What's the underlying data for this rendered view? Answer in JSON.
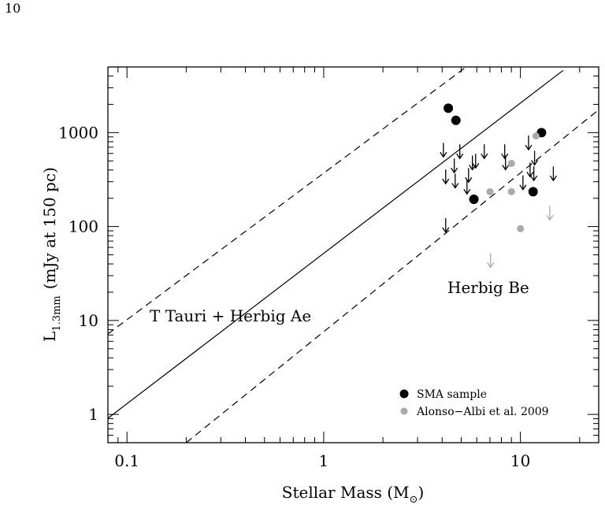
{
  "page_number": "10",
  "chart_data": {
    "type": "scatter",
    "x_label": [
      "Stellar Mass (M",
      "⊙",
      ")"
    ],
    "y_label": [
      "L",
      "1.3mm",
      "(mJy at 150 pc)"
    ],
    "log_x": true,
    "log_y": true,
    "xlim": [
      0.08,
      25
    ],
    "ylim": [
      0.5,
      5000
    ],
    "xticks": [
      0.1,
      1,
      10
    ],
    "yticks": [
      1,
      10,
      100,
      1000
    ],
    "xticks_minor": [
      0.08,
      0.09,
      0.2,
      0.3,
      0.4,
      0.5,
      0.6,
      0.7,
      0.8,
      0.9,
      2,
      3,
      4,
      5,
      6,
      7,
      8,
      9,
      20
    ],
    "yticks_minor": [
      0.6,
      0.7,
      0.8,
      0.9,
      2,
      3,
      4,
      5,
      6,
      7,
      8,
      9,
      20,
      30,
      40,
      50,
      60,
      70,
      80,
      90,
      200,
      300,
      400,
      500,
      600,
      700,
      800,
      900,
      2000,
      3000,
      4000,
      5000
    ],
    "lines": [
      {
        "style": "solid",
        "color": "#000000",
        "x": [
          0.08,
          16.5
        ],
        "values": [
          0.91,
          4600
        ]
      },
      {
        "style": "dashed",
        "color": "#000000",
        "x": [
          0.08,
          5.3
        ],
        "values": [
          7.2,
          5000
        ]
      },
      {
        "style": "dashed",
        "color": "#000000",
        "x": [
          0.2,
          25
        ],
        "values": [
          0.5,
          1750
        ]
      }
    ],
    "series": [
      {
        "name": "SMA sample",
        "color": "#000000",
        "x": [
          4.3,
          4.7,
          5.8,
          11.6,
          12.8
        ],
        "values": [
          1820,
          1350,
          195,
          235,
          1000
        ]
      },
      {
        "name": "Alonso−Albi et al. 2009",
        "color": "#aaaaaa",
        "x": [
          7.0,
          9.0,
          9.0,
          10.0,
          12.0
        ],
        "values": [
          235,
          470,
          235,
          95,
          920
        ]
      }
    ],
    "upper_limits": [
      {
        "color": "#000000",
        "x": [
          4.06,
          4.17,
          4.17,
          4.61,
          4.66,
          4.92,
          5.45,
          5.35,
          5.7,
          5.92,
          6.55,
          8.32,
          8.4,
          10.3,
          11.0,
          11.2,
          11.8,
          11.7,
          14.7
        ],
        "values": [
          780,
          405,
          123,
          530,
          365,
          750,
          420,
          315,
          570,
          595,
          750,
          750,
          570,
          350,
          930,
          480,
          640,
          437,
          437
        ]
      },
      {
        "color": "#aaaaaa",
        "x": [
          7.05,
          14.1
        ],
        "values": [
          52,
          166
        ]
      }
    ],
    "annotations": [
      "T Tauri + Herbig Ae",
      "Herbig Be"
    ],
    "legend": "lower right"
  }
}
